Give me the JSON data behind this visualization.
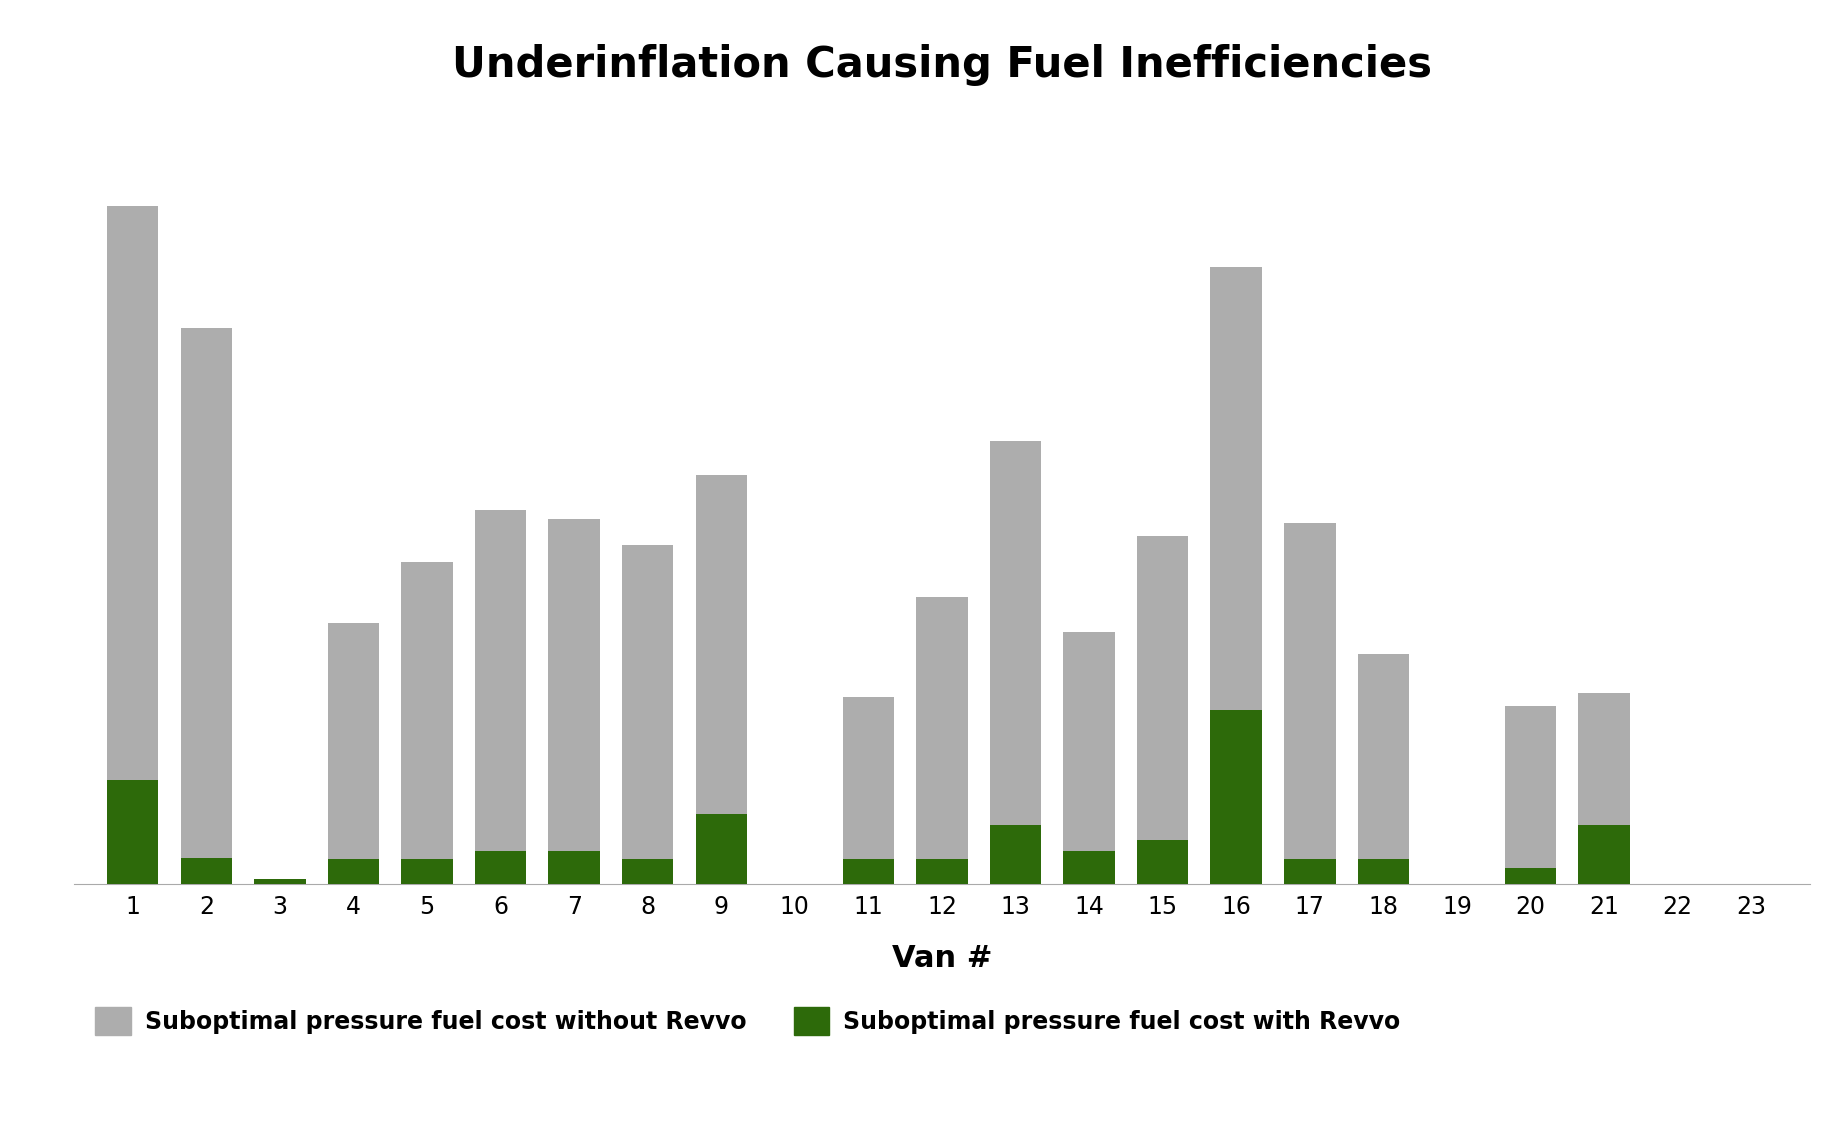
{
  "title": "Underinflation Causing Fuel Inefficiencies",
  "xlabel": "Van #",
  "van_numbers": [
    1,
    2,
    3,
    4,
    5,
    6,
    7,
    8,
    9,
    11,
    12,
    13,
    14,
    15,
    16,
    17,
    18,
    19,
    20,
    21,
    22,
    23
  ],
  "without_revvo": [
    780,
    640,
    5,
    300,
    370,
    430,
    420,
    390,
    470,
    215,
    330,
    510,
    290,
    400,
    710,
    415,
    265,
    0,
    205,
    220,
    0,
    0
  ],
  "with_revvo": [
    120,
    30,
    5,
    28,
    28,
    38,
    38,
    28,
    80,
    28,
    28,
    68,
    38,
    50,
    200,
    28,
    28,
    0,
    18,
    68,
    0,
    0
  ],
  "color_without": "#adadad",
  "color_with": "#2d6a0a",
  "legend_without": "Suboptimal pressure fuel cost without Revvo",
  "legend_with": "Suboptimal pressure fuel cost with Revvo",
  "background_color": "#ffffff",
  "bar_width": 0.7,
  "ylim": [
    0,
    900
  ],
  "grid_color": "#cccccc",
  "title_fontsize": 30,
  "axis_label_fontsize": 22,
  "tick_fontsize": 17,
  "legend_fontsize": 17
}
